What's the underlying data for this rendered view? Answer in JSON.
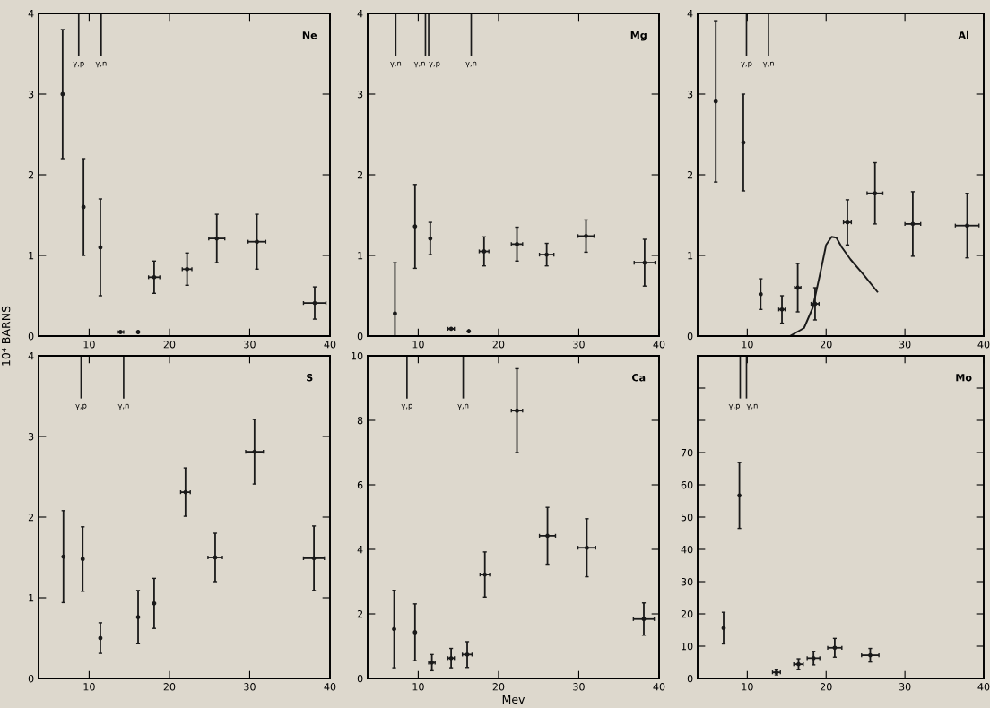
{
  "chart_data": [
    {
      "type": "scatter",
      "title": "Ne",
      "ylabel": "10⁴ BARNS",
      "marker": "circle",
      "xlim": [
        3.7,
        40
      ],
      "xticks": [
        10,
        20,
        30,
        40
      ],
      "ylim": [
        0,
        4
      ],
      "yticks": [
        0,
        1,
        2,
        3,
        4
      ],
      "ref_lines": [
        {
          "axis": "x",
          "value": 8.7,
          "label": "γ,p"
        },
        {
          "axis": "x",
          "value": 11.5,
          "label": "γ,n"
        }
      ],
      "series": [
        {
          "color": "#1a1a1a",
          "x": [
            6.7,
            9.3,
            11.4,
            13.9,
            16.1,
            18.1,
            22.2,
            25.9,
            30.9,
            38.1
          ],
          "values": [
            3.0,
            1.6,
            1.1,
            0.05,
            0.05,
            0.73,
            0.83,
            1.21,
            1.17,
            0.41
          ],
          "errors": [
            0.8,
            0.6,
            0.6,
            null,
            null,
            0.2,
            0.2,
            0.3,
            0.34,
            0.2
          ],
          "xerrors": [
            null,
            null,
            null,
            0.4,
            null,
            0.7,
            0.6,
            1.0,
            1.1,
            1.4
          ]
        }
      ]
    },
    {
      "type": "scatter",
      "title": "Mg",
      "marker": "circle",
      "xlim": [
        3.7,
        40
      ],
      "xticks": [
        10,
        20,
        30,
        40
      ],
      "ylim": [
        0,
        4
      ],
      "yticks": [
        0,
        1,
        2,
        3,
        4
      ],
      "ref_lines": [
        {
          "axis": "x",
          "value": 7.2,
          "label": "γ,n"
        },
        {
          "axis": "x",
          "value": 10.9,
          "label": "γ,n"
        },
        {
          "axis": "x",
          "value": 11.3,
          "label": "γ,p"
        },
        {
          "axis": "x",
          "value": 16.6,
          "label": "γ,n"
        }
      ],
      "series": [
        {
          "color": "#1a1a1a",
          "x": [
            7.1,
            9.6,
            11.5,
            14.1,
            16.3,
            18.2,
            22.3,
            26.0,
            30.9,
            38.2
          ],
          "values": [
            0.28,
            1.36,
            1.21,
            0.09,
            0.06,
            1.05,
            1.14,
            1.01,
            1.24,
            0.91
          ],
          "errors": [
            [
              0,
              0.91
            ],
            0.52,
            0.2,
            null,
            null,
            0.18,
            0.21,
            0.14,
            0.2,
            0.29
          ],
          "xerrors": [
            null,
            null,
            null,
            0.4,
            null,
            0.6,
            0.7,
            0.9,
            1.0,
            1.3
          ]
        }
      ]
    },
    {
      "type": "scatter",
      "title": "Al",
      "marker": "circle",
      "xlim": [
        3.7,
        40
      ],
      "xticks": [
        10,
        20,
        30,
        40
      ],
      "ylim": [
        0,
        4
      ],
      "yticks": [
        0,
        1,
        2,
        3,
        4
      ],
      "ref_lines": [
        {
          "axis": "x",
          "value": 9.9,
          "label": "γ,p"
        },
        {
          "axis": "x",
          "value": 12.7,
          "label": "γ,n"
        }
      ],
      "series": [
        {
          "color": "#1a1a1a",
          "x": [
            6.0,
            9.5,
            11.7,
            14.4,
            16.4,
            18.6,
            22.7,
            26.2,
            31.0,
            37.9
          ],
          "values": [
            2.91,
            2.4,
            0.52,
            0.33,
            0.6,
            0.4,
            1.41,
            1.77,
            1.39,
            1.37
          ],
          "errors": [
            1.0,
            0.6,
            0.19,
            0.17,
            0.3,
            0.2,
            0.28,
            0.38,
            0.4,
            0.4
          ],
          "xerrors": [
            null,
            null,
            null,
            0.4,
            0.4,
            0.5,
            0.5,
            1.0,
            1.0,
            1.5
          ]
        },
        {
          "type": "line",
          "marker": "none",
          "color": "#1a1a1a",
          "x": [
            15.4,
            17.2,
            18.3,
            19.3,
            20.0,
            20.7,
            21.3,
            22.0,
            23.1,
            24.6,
            26.5
          ],
          "values": [
            0,
            0.1,
            0.35,
            0.8,
            1.13,
            1.23,
            1.22,
            1.1,
            0.95,
            0.78,
            0.55
          ]
        }
      ]
    },
    {
      "type": "scatter",
      "title": "S",
      "marker": "circle",
      "xlim": [
        3.7,
        40
      ],
      "xticks": [
        10,
        20,
        30,
        40
      ],
      "ylim": [
        0,
        4
      ],
      "yticks": [
        0,
        1,
        2,
        3,
        4
      ],
      "ref_lines": [
        {
          "axis": "x",
          "value": 9.0,
          "label": "γ,p"
        },
        {
          "axis": "x",
          "value": 14.3,
          "label": "γ,n"
        }
      ],
      "series": [
        {
          "color": "#1a1a1a",
          "x": [
            6.8,
            9.2,
            11.4,
            16.1,
            18.1,
            22.0,
            25.7,
            30.6,
            38.0
          ],
          "values": [
            1.51,
            1.48,
            0.5,
            0.76,
            0.93,
            2.31,
            1.5,
            2.81,
            1.49
          ],
          "errors": [
            0.57,
            0.4,
            0.19,
            0.33,
            0.31,
            0.3,
            0.3,
            0.4,
            0.4
          ],
          "xerrors": [
            null,
            null,
            null,
            null,
            null,
            0.6,
            0.9,
            1.1,
            1.3
          ]
        }
      ]
    },
    {
      "type": "scatter",
      "title": "Ca",
      "xlabel": "Mev",
      "marker": "circle",
      "xlim": [
        3.7,
        40
      ],
      "xticks": [
        10,
        20,
        30,
        40
      ],
      "ylim": [
        0,
        10
      ],
      "yticks": [
        0,
        2,
        4,
        6,
        8,
        10
      ],
      "ref_lines": [
        {
          "axis": "x",
          "value": 8.6,
          "label": "γ,p"
        },
        {
          "axis": "x",
          "value": 15.6,
          "label": "γ,n"
        }
      ],
      "series": [
        {
          "color": "#1a1a1a",
          "x": [
            7.0,
            9.6,
            11.7,
            14.1,
            16.1,
            18.3,
            22.3,
            26.1,
            31.0,
            38.1
          ],
          "values": [
            1.53,
            1.43,
            0.49,
            0.63,
            0.74,
            3.22,
            8.3,
            4.42,
            4.05,
            1.84
          ],
          "errors": [
            1.2,
            0.88,
            0.25,
            0.3,
            0.4,
            0.7,
            1.3,
            0.88,
            0.9,
            0.5
          ],
          "xerrors": [
            null,
            null,
            0.4,
            0.4,
            0.6,
            0.6,
            0.7,
            1.0,
            1.1,
            1.3
          ]
        }
      ]
    },
    {
      "type": "scatter",
      "title": "Mo",
      "marker": "circle",
      "xlim": [
        3.7,
        40
      ],
      "xticks": [
        10,
        20,
        30,
        40
      ],
      "ylim": [
        0,
        100
      ],
      "yticks": [
        0,
        10,
        20,
        30,
        40,
        50,
        60,
        70,
        {
          "value": 80,
          "label": null
        },
        {
          "value": 90,
          "label": null
        },
        {
          "value": 100,
          "label": null
        }
      ],
      "ref_lines": [
        {
          "axis": "x",
          "value": 9.1,
          "label": "γ,p"
        },
        {
          "axis": "x",
          "value": 9.9,
          "label": "γ,n"
        }
      ],
      "series": [
        {
          "color": "#1a1a1a",
          "x": [
            7.0,
            9.0,
            13.7,
            16.5,
            18.4,
            21.1,
            25.6
          ],
          "values": [
            15.6,
            56.7,
            1.9,
            4.4,
            6.3,
            9.5,
            7.2
          ],
          "errors": [
            4.9,
            10.2,
            0.8,
            1.7,
            2.1,
            2.9,
            2.1
          ],
          "xerrors": [
            null,
            null,
            0.5,
            0.6,
            0.8,
            0.9,
            1.1
          ]
        }
      ]
    }
  ]
}
